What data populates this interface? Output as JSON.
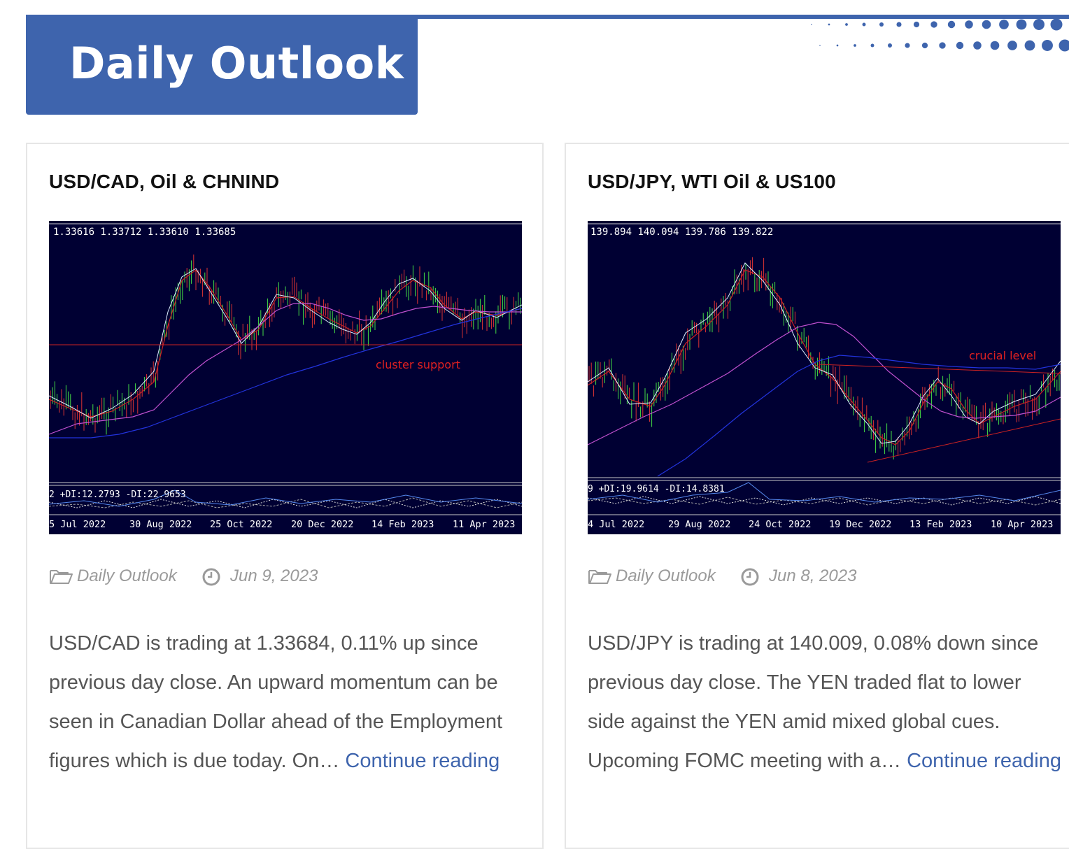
{
  "header": {
    "title": "Daily Outlook",
    "accent_color": "#3e64ad"
  },
  "posts": [
    {
      "title": "USD/CAD, Oil & CHNIND",
      "chart": {
        "ohlc_label": "1.33616 1.33712 1.33610 1.33685",
        "indicator_label": "2 +DI:12.2793 -DI:22.9653",
        "annotation": "cluster support",
        "dates": [
          "5 Jul 2022",
          "30 Aug 2022",
          "25 Oct 2022",
          "20 Dec 2022",
          "14 Feb 2023",
          "11 Apr 2023"
        ]
      },
      "category": "Daily Outlook",
      "date": "Jun 9, 2023",
      "excerpt": "USD/CAD is trading at 1.33684, 0.11% up since previous day close. An upward momentum can be seen in Canadian Dollar ahead of the Employment figures which is due today. On… ",
      "more_label": "Continue reading",
      "folder_icon": "folder-icon",
      "clock_icon": "clock-icon"
    },
    {
      "title": "USD/JPY, WTI Oil & US100",
      "chart": {
        "ohlc_label": "139.894 140.094 139.786 139.822",
        "indicator_label": "9 +DI:19.9614 -DI:14.8381",
        "annotation": "crucial level",
        "dates": [
          "4 Jul 2022",
          "29 Aug 2022",
          "24 Oct 2022",
          "19 Dec 2022",
          "13 Feb 2023",
          "10 Apr 2023"
        ]
      },
      "category": "Daily Outlook",
      "date": "Jun 8, 2023",
      "excerpt": "USD/JPY is trading at 140.009, 0.08% down since previous day close. The YEN traded flat to lower side against the YEN amid mixed global cues. Upcoming FOMC meeting with a… ",
      "more_label": "Continue reading",
      "folder_icon": "folder-icon",
      "clock_icon": "clock-icon"
    }
  ]
}
